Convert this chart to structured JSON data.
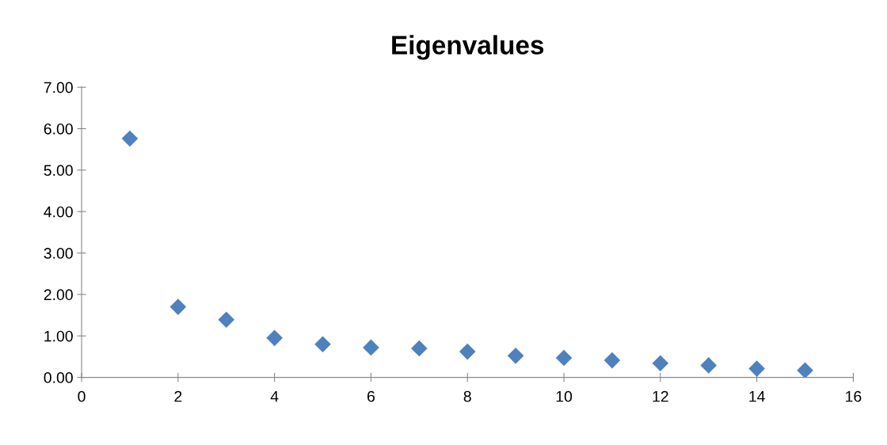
{
  "chart_data": {
    "type": "scatter",
    "title": "Eigenvalues",
    "x": [
      1,
      2,
      3,
      4,
      5,
      6,
      7,
      8,
      9,
      10,
      11,
      12,
      13,
      14,
      15
    ],
    "series": [
      {
        "color": "#4f81bd",
        "values": [
          5.76,
          1.7,
          1.39,
          0.95,
          0.8,
          0.72,
          0.7,
          0.62,
          0.52,
          0.47,
          0.41,
          0.34,
          0.29,
          0.21,
          0.17
        ]
      }
    ],
    "marker": "diamond",
    "xlim": [
      0,
      16
    ],
    "xticks": [
      0,
      2,
      4,
      6,
      8,
      10,
      12,
      14,
      16
    ],
    "ylim": [
      0,
      7
    ],
    "yticks": [
      {
        "value": 0,
        "label": "0.00"
      },
      {
        "value": 1,
        "label": "1.00"
      },
      {
        "value": 2,
        "label": "2.00"
      },
      {
        "value": 3,
        "label": "3.00"
      },
      {
        "value": 4,
        "label": "4.00"
      },
      {
        "value": 5,
        "label": "5.00"
      },
      {
        "value": 6,
        "label": "6.00"
      },
      {
        "value": 7,
        "label": "7.00"
      }
    ],
    "grid": false
  }
}
